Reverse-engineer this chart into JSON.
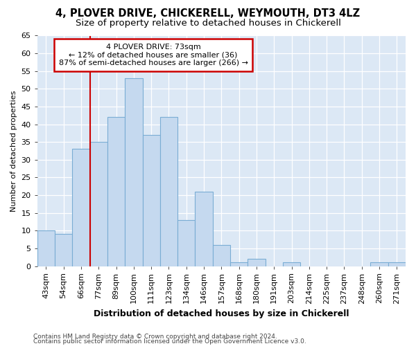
{
  "title1": "4, PLOVER DRIVE, CHICKERELL, WEYMOUTH, DT3 4LZ",
  "title2": "Size of property relative to detached houses in Chickerell",
  "xlabel": "Distribution of detached houses by size in Chickerell",
  "ylabel": "Number of detached properties",
  "categories": [
    "43sqm",
    "54sqm",
    "66sqm",
    "77sqm",
    "89sqm",
    "100sqm",
    "111sqm",
    "123sqm",
    "134sqm",
    "146sqm",
    "157sqm",
    "168sqm",
    "180sqm",
    "191sqm",
    "203sqm",
    "214sqm",
    "225sqm",
    "237sqm",
    "248sqm",
    "260sqm",
    "271sqm"
  ],
  "values": [
    10,
    9,
    33,
    35,
    42,
    53,
    37,
    42,
    13,
    21,
    6,
    1,
    2,
    0,
    1,
    0,
    0,
    0,
    0,
    1,
    1
  ],
  "bar_color": "#c5d9ef",
  "bar_edge_color": "#7aadd4",
  "vline_color": "#cc0000",
  "annotation_text": "4 PLOVER DRIVE: 73sqm\n← 12% of detached houses are smaller (36)\n87% of semi-detached houses are larger (266) →",
  "annotation_box_color": "#cc0000",
  "ylim": [
    0,
    65
  ],
  "yticks": [
    0,
    5,
    10,
    15,
    20,
    25,
    30,
    35,
    40,
    45,
    50,
    55,
    60,
    65
  ],
  "footer1": "Contains HM Land Registry data © Crown copyright and database right 2024.",
  "footer2": "Contains public sector information licensed under the Open Government Licence v3.0.",
  "fig_bg_color": "#ffffff",
  "plot_bg_color": "#dce8f5",
  "title1_fontsize": 10.5,
  "title2_fontsize": 9.5,
  "xlabel_fontsize": 9,
  "ylabel_fontsize": 8,
  "tick_fontsize": 8,
  "annotation_fontsize": 8,
  "footer_fontsize": 6.5
}
